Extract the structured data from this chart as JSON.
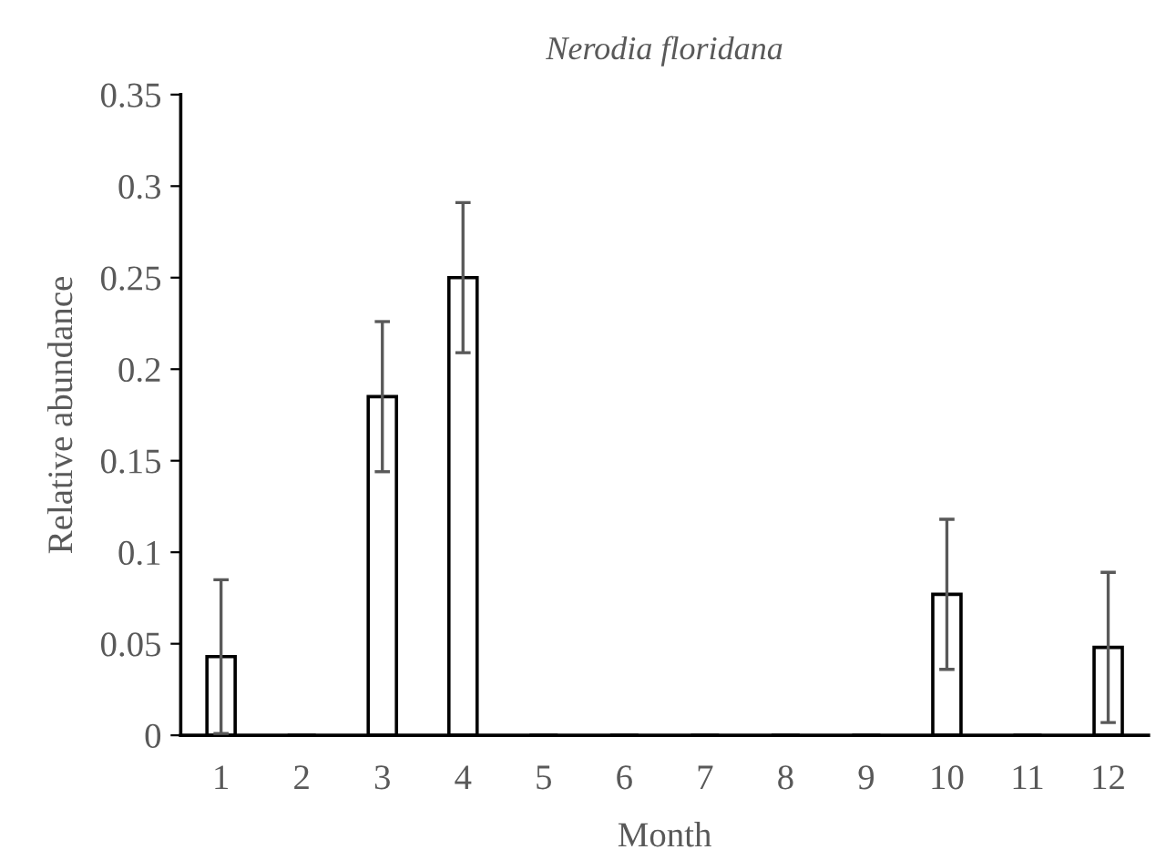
{
  "chart_data": {
    "type": "bar",
    "title": "Nerodia floridana",
    "xlabel": "Month",
    "ylabel": "Relative abundance",
    "categories": [
      "1",
      "2",
      "3",
      "4",
      "5",
      "6",
      "7",
      "8",
      "9",
      "10",
      "11",
      "12"
    ],
    "series": [
      {
        "color": "#ffffff",
        "values": [
          0.043,
          0,
          0.185,
          0.25,
          0,
          0,
          0,
          0,
          0,
          0.077,
          0,
          0.048
        ],
        "errors": [
          0.042,
          null,
          0.041,
          0.041,
          null,
          null,
          null,
          null,
          null,
          0.041,
          null,
          0.041
        ]
      }
    ],
    "ylim": [
      0,
      0.35
    ],
    "yticks": [
      0,
      0.05,
      0.1,
      0.15,
      0.2,
      0.25,
      0.3,
      0.35
    ],
    "grid": false,
    "legend": false
  }
}
